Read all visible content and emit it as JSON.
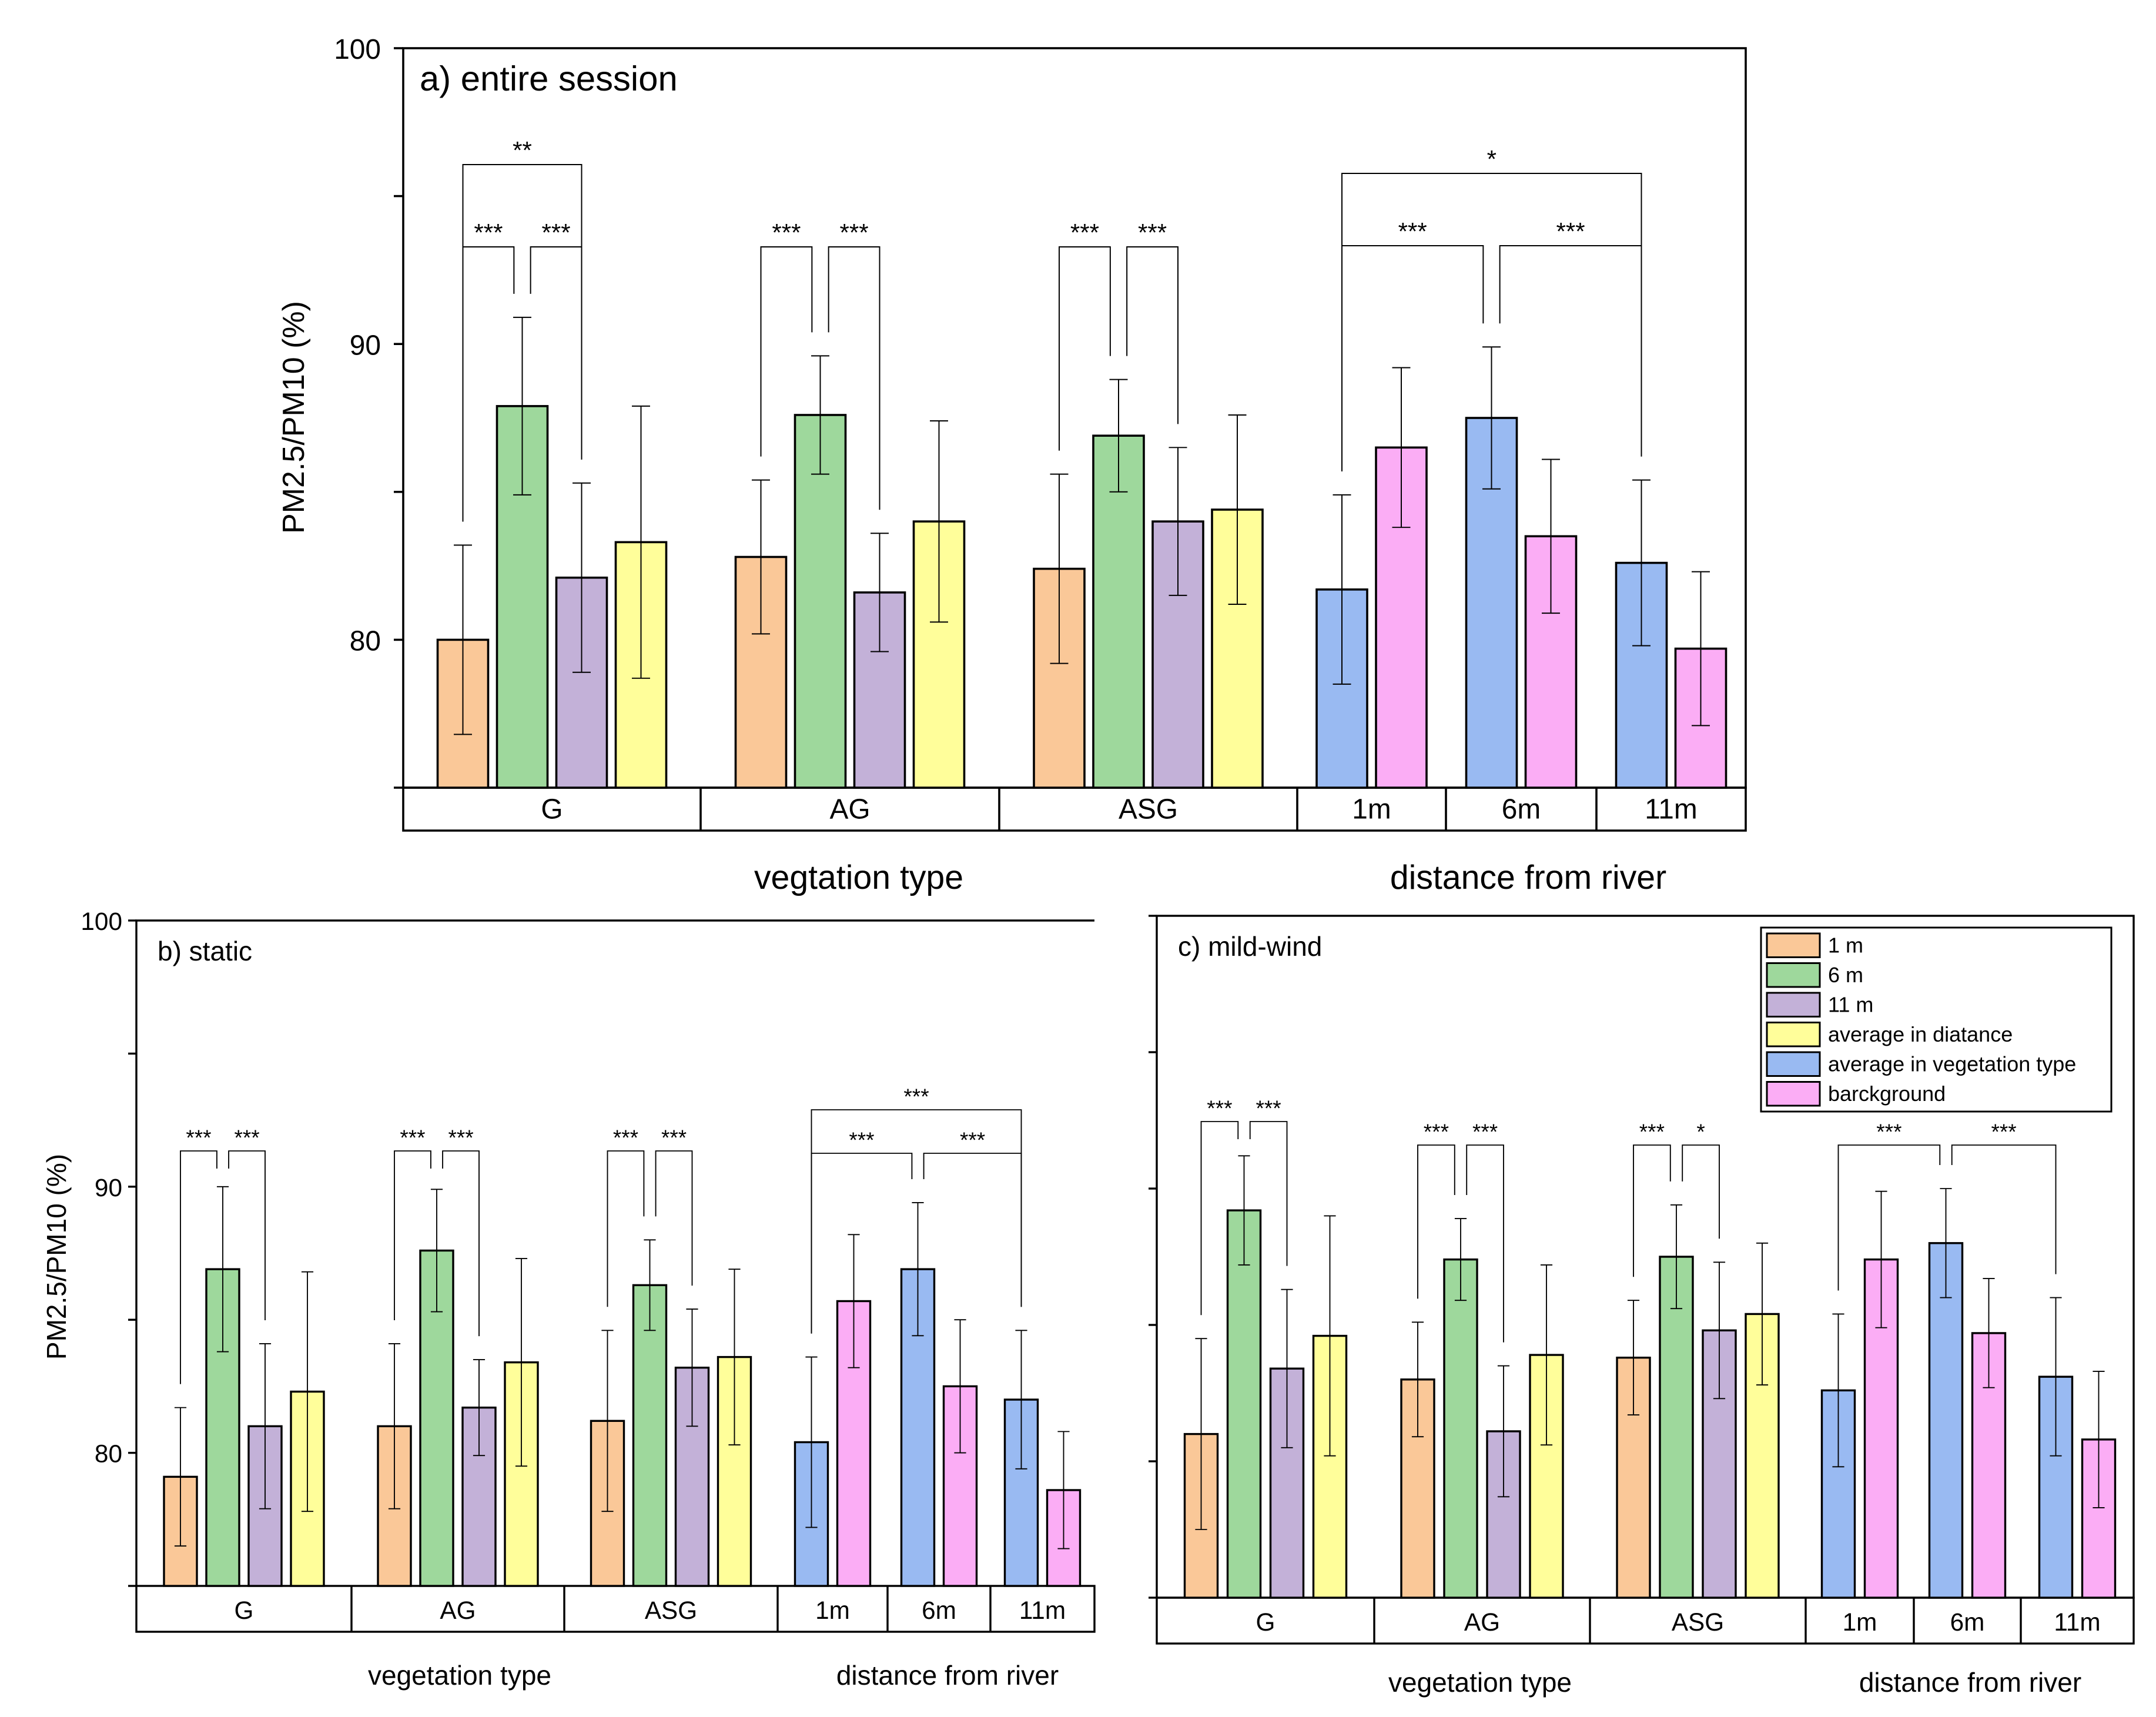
{
  "figure": {
    "legend": {
      "items": [
        {
          "label": "1 m",
          "color": "#FAC898"
        },
        {
          "label": "6 m",
          "color": "#9ED89C"
        },
        {
          "label": "11 m",
          "color": "#C3B1D8"
        },
        {
          "label": "average in diatance",
          "color": "#FFFE9A"
        },
        {
          "label": "average in vegetation type",
          "color": "#99BAF2"
        },
        {
          "label": "barckground",
          "color": "#FBADF5"
        }
      ]
    }
  },
  "chart_data": [
    {
      "type": "bar",
      "title": "a) entire session",
      "ylabel": "PM2.5/PM10 (%)",
      "ylim": [
        75,
        100
      ],
      "yticks": [
        80,
        90,
        100
      ],
      "group_labels": [
        "G",
        "AG",
        "ASG",
        "1m",
        "6m",
        "11m"
      ],
      "section_labels": [
        "vegtation type",
        "distance from river"
      ],
      "groups": [
        {
          "label": "G",
          "bars": [
            {
              "series": "1 m",
              "value": 80.0,
              "error": 3.2
            },
            {
              "series": "6 m",
              "value": 87.9,
              "error": 3.0
            },
            {
              "series": "11 m",
              "value": 82.1,
              "error": 3.2
            },
            {
              "series": "average in diatance",
              "value": 83.3,
              "error": 4.6
            }
          ]
        },
        {
          "label": "AG",
          "bars": [
            {
              "series": "1 m",
              "value": 82.8,
              "error": 2.6
            },
            {
              "series": "6 m",
              "value": 87.6,
              "error": 2.0
            },
            {
              "series": "11 m",
              "value": 81.6,
              "error": 2.0
            },
            {
              "series": "average in diatance",
              "value": 84.0,
              "error": 3.4
            }
          ]
        },
        {
          "label": "ASG",
          "bars": [
            {
              "series": "1 m",
              "value": 82.4,
              "error": 3.2
            },
            {
              "series": "6 m",
              "value": 86.9,
              "error": 1.9
            },
            {
              "series": "11 m",
              "value": 84.0,
              "error": 2.5
            },
            {
              "series": "average in diatance",
              "value": 84.4,
              "error": 3.2
            }
          ]
        },
        {
          "label": "1m",
          "bars": [
            {
              "series": "average in vegetation type",
              "value": 81.7,
              "error": 3.2
            },
            {
              "series": "barckground",
              "value": 86.5,
              "error": 2.7
            }
          ]
        },
        {
          "label": "6m",
          "bars": [
            {
              "series": "average in vegetation type",
              "value": 87.5,
              "error": 2.4
            },
            {
              "series": "barckground",
              "value": 83.5,
              "error": 2.6
            }
          ]
        },
        {
          "label": "11m",
          "bars": [
            {
              "series": "average in vegetation type",
              "value": 82.6,
              "error": 2.8
            },
            {
              "series": "barckground",
              "value": 79.7,
              "error": 2.6
            }
          ]
        }
      ],
      "significance": [
        {
          "label": "***",
          "from": [
            0,
            0
          ],
          "to": [
            0,
            1
          ]
        },
        {
          "label": "***",
          "from": [
            0,
            1
          ],
          "to": [
            0,
            2
          ]
        },
        {
          "label": "**",
          "from": [
            0,
            0
          ],
          "to": [
            0,
            2
          ]
        },
        {
          "label": "***",
          "from": [
            1,
            0
          ],
          "to": [
            1,
            1
          ]
        },
        {
          "label": "***",
          "from": [
            1,
            1
          ],
          "to": [
            1,
            2
          ]
        },
        {
          "label": "***",
          "from": [
            2,
            0
          ],
          "to": [
            2,
            1
          ]
        },
        {
          "label": "***",
          "from": [
            2,
            1
          ],
          "to": [
            2,
            2
          ]
        },
        {
          "label": "***",
          "from": [
            3,
            0
          ],
          "to": [
            4,
            0
          ]
        },
        {
          "label": "***",
          "from": [
            4,
            0
          ],
          "to": [
            5,
            0
          ]
        },
        {
          "label": "*",
          "from": [
            3,
            0
          ],
          "to": [
            5,
            0
          ]
        }
      ]
    },
    {
      "type": "bar",
      "title": "b) static",
      "ylabel": "PM2.5/PM10 (%)",
      "ylim": [
        75,
        100
      ],
      "yticks": [
        80,
        90,
        100
      ],
      "group_labels": [
        "G",
        "AG",
        "ASG",
        "1m",
        "6m",
        "11m"
      ],
      "section_labels": [
        "vegetation type",
        "distance from river"
      ],
      "groups": [
        {
          "label": "G",
          "bars": [
            {
              "series": "1 m",
              "value": 79.1,
              "error": 2.6
            },
            {
              "series": "6 m",
              "value": 86.9,
              "error": 3.1
            },
            {
              "series": "11 m",
              "value": 81.0,
              "error": 3.1
            },
            {
              "series": "average in diatance",
              "value": 82.3,
              "error": 4.5
            }
          ]
        },
        {
          "label": "AG",
          "bars": [
            {
              "series": "1 m",
              "value": 81.0,
              "error": 3.1
            },
            {
              "series": "6 m",
              "value": 87.6,
              "error": 2.3
            },
            {
              "series": "11 m",
              "value": 81.7,
              "error": 1.8
            },
            {
              "series": "average in diatance",
              "value": 83.4,
              "error": 3.9
            }
          ]
        },
        {
          "label": "ASG",
          "bars": [
            {
              "series": "1 m",
              "value": 81.2,
              "error": 3.4
            },
            {
              "series": "6 m",
              "value": 86.3,
              "error": 1.7
            },
            {
              "series": "11 m",
              "value": 83.2,
              "error": 2.2
            },
            {
              "series": "average in diatance",
              "value": 83.6,
              "error": 3.3
            }
          ]
        },
        {
          "label": "1m",
          "bars": [
            {
              "series": "average in vegetation type",
              "value": 80.4,
              "error": 3.2
            },
            {
              "series": "barckground",
              "value": 85.7,
              "error": 2.5
            }
          ]
        },
        {
          "label": "6m",
          "bars": [
            {
              "series": "average in vegetation type",
              "value": 86.9,
              "error": 2.5
            },
            {
              "series": "barckground",
              "value": 82.5,
              "error": 2.5
            }
          ]
        },
        {
          "label": "11m",
          "bars": [
            {
              "series": "average in vegetation type",
              "value": 82.0,
              "error": 2.6
            },
            {
              "series": "barckground",
              "value": 78.6,
              "error": 2.2
            }
          ]
        }
      ],
      "significance": [
        {
          "label": "***",
          "from": [
            0,
            0
          ],
          "to": [
            0,
            1
          ]
        },
        {
          "label": "***",
          "from": [
            0,
            1
          ],
          "to": [
            0,
            2
          ]
        },
        {
          "label": "***",
          "from": [
            1,
            0
          ],
          "to": [
            1,
            1
          ]
        },
        {
          "label": "***",
          "from": [
            1,
            1
          ],
          "to": [
            1,
            2
          ]
        },
        {
          "label": "***",
          "from": [
            2,
            0
          ],
          "to": [
            2,
            1
          ]
        },
        {
          "label": "***",
          "from": [
            2,
            1
          ],
          "to": [
            2,
            2
          ]
        },
        {
          "label": "***",
          "from": [
            3,
            0
          ],
          "to": [
            4,
            0
          ]
        },
        {
          "label": "***",
          "from": [
            4,
            0
          ],
          "to": [
            5,
            0
          ]
        },
        {
          "label": "***",
          "from": [
            3,
            0
          ],
          "to": [
            5,
            0
          ]
        }
      ]
    },
    {
      "type": "bar",
      "title": "c) mild-wind",
      "ylabel": "",
      "ylim": [
        75,
        100
      ],
      "yticks": [
        80,
        90,
        100
      ],
      "group_labels": [
        "G",
        "AG",
        "ASG",
        "1m",
        "6m",
        "11m"
      ],
      "section_labels": [
        "vegetation type",
        "distance from river"
      ],
      "groups": [
        {
          "label": "G",
          "bars": [
            {
              "series": "1 m",
              "value": 81.0,
              "error": 3.5
            },
            {
              "series": "6 m",
              "value": 89.2,
              "error": 2.0
            },
            {
              "series": "11 m",
              "value": 83.4,
              "error": 2.9
            },
            {
              "series": "average in diatance",
              "value": 84.6,
              "error": 4.4
            }
          ]
        },
        {
          "label": "AG",
          "bars": [
            {
              "series": "1 m",
              "value": 83.0,
              "error": 2.1
            },
            {
              "series": "6 m",
              "value": 87.4,
              "error": 1.5
            },
            {
              "series": "11 m",
              "value": 81.1,
              "error": 2.4
            },
            {
              "series": "average in diatance",
              "value": 83.9,
              "error": 3.3
            }
          ]
        },
        {
          "label": "ASG",
          "bars": [
            {
              "series": "1 m",
              "value": 83.8,
              "error": 2.1
            },
            {
              "series": "6 m",
              "value": 87.5,
              "error": 1.9
            },
            {
              "series": "11 m",
              "value": 84.8,
              "error": 2.5
            },
            {
              "series": "average in diatance",
              "value": 85.4,
              "error": 2.6
            }
          ]
        },
        {
          "label": "1m",
          "bars": [
            {
              "series": "average in vegetation type",
              "value": 82.6,
              "error": 2.8
            },
            {
              "series": "barckground",
              "value": 87.4,
              "error": 2.5
            }
          ]
        },
        {
          "label": "6m",
          "bars": [
            {
              "series": "average in vegetation type",
              "value": 88.0,
              "error": 2.0
            },
            {
              "series": "barckground",
              "value": 84.7,
              "error": 2.0
            }
          ]
        },
        {
          "label": "11m",
          "bars": [
            {
              "series": "average in vegetation type",
              "value": 83.1,
              "error": 2.9
            },
            {
              "series": "barckground",
              "value": 80.8,
              "error": 2.5
            }
          ]
        }
      ],
      "significance": [
        {
          "label": "***",
          "from": [
            0,
            0
          ],
          "to": [
            0,
            1
          ]
        },
        {
          "label": "***",
          "from": [
            0,
            1
          ],
          "to": [
            0,
            2
          ]
        },
        {
          "label": "***",
          "from": [
            1,
            0
          ],
          "to": [
            1,
            1
          ]
        },
        {
          "label": "***",
          "from": [
            1,
            1
          ],
          "to": [
            1,
            2
          ]
        },
        {
          "label": "***",
          "from": [
            2,
            0
          ],
          "to": [
            2,
            1
          ]
        },
        {
          "label": "*",
          "from": [
            2,
            1
          ],
          "to": [
            2,
            2
          ]
        },
        {
          "label": "***",
          "from": [
            3,
            0
          ],
          "to": [
            4,
            0
          ]
        },
        {
          "label": "***",
          "from": [
            4,
            0
          ],
          "to": [
            5,
            0
          ]
        }
      ]
    }
  ]
}
